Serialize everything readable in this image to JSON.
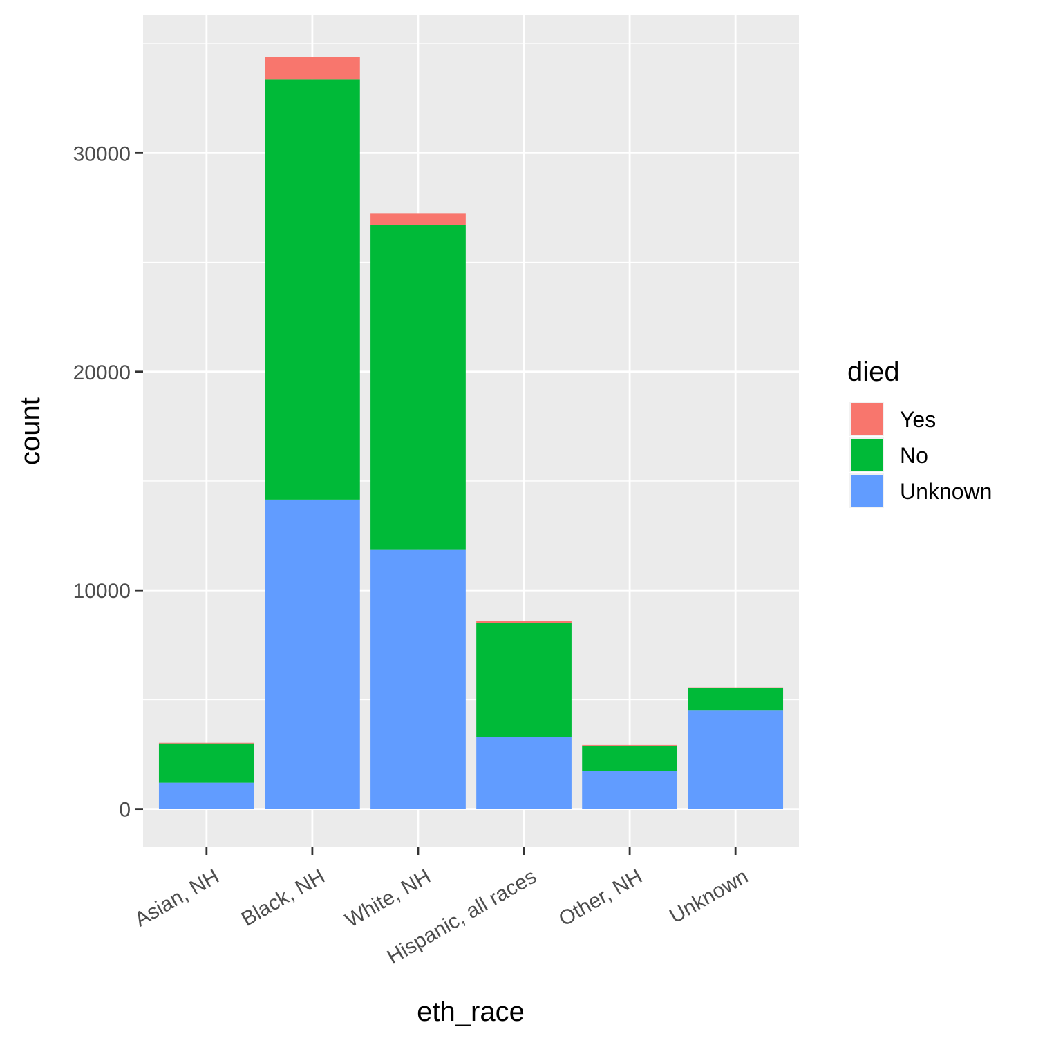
{
  "chart_data": {
    "type": "bar",
    "stacked": true,
    "title": "",
    "xlabel": "eth_race",
    "ylabel": "count",
    "categories": [
      "Asian, NH",
      "Black, NH",
      "White, NH",
      "Hispanic, all races",
      "Other, NH",
      "Unknown"
    ],
    "series": [
      {
        "name": "Unknown",
        "color": "#619CFF",
        "values": [
          1200,
          14150,
          11850,
          3300,
          1750,
          4500
        ]
      },
      {
        "name": "No",
        "color": "#00BA38",
        "values": [
          1800,
          19200,
          14850,
          5200,
          1150,
          1050
        ]
      },
      {
        "name": "Yes",
        "color": "#F8766D",
        "values": [
          30,
          1050,
          550,
          100,
          30,
          10
        ]
      }
    ],
    "ylim": [
      -1750,
      36300
    ],
    "yticks": [
      0,
      10000,
      20000,
      30000
    ],
    "ytick_labels": [
      "0",
      "10000",
      "20000",
      "30000"
    ],
    "grid": true,
    "legend": {
      "title": "died",
      "position": "right",
      "items": [
        "Yes",
        "No",
        "Unknown"
      ]
    }
  }
}
